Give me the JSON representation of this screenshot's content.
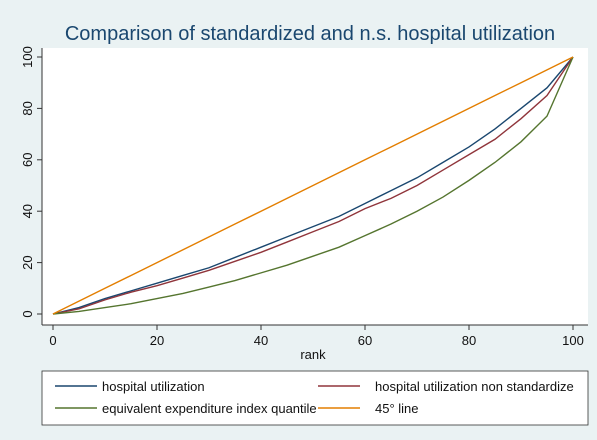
{
  "chart_data": {
    "type": "line",
    "title": "Comparison of standardized and n.s. hospital utilization",
    "x_label": "rank",
    "x": [
      0,
      5,
      10,
      15,
      20,
      25,
      30,
      35,
      40,
      45,
      50,
      55,
      60,
      65,
      70,
      75,
      80,
      85,
      90,
      95,
      100
    ],
    "series": [
      {
        "name": "hospital utilization",
        "color": "#1a476f",
        "values": [
          0,
          2.5,
          6,
          9,
          12,
          15,
          18,
          22,
          26,
          30,
          34,
          38,
          43,
          48,
          53,
          59,
          65,
          72,
          80,
          88,
          100
        ]
      },
      {
        "name": "hospital utilization non standardize",
        "color": "#90353b",
        "values": [
          0,
          2,
          5.5,
          8.5,
          11,
          14,
          17,
          20.5,
          24,
          28,
          32,
          36,
          41,
          45,
          50,
          56,
          62,
          68,
          76,
          85,
          100
        ]
      },
      {
        "name": "equivalent expenditure index quantile",
        "color": "#55752f",
        "values": [
          0,
          1,
          2.5,
          4,
          6,
          8,
          10.5,
          13,
          16,
          19,
          22.5,
          26,
          30.5,
          35,
          40,
          45.5,
          52,
          59,
          67,
          77,
          100
        ]
      },
      {
        "name": "45° line",
        "color": "#e37e00",
        "values": [
          0,
          5,
          10,
          15,
          20,
          25,
          30,
          35,
          40,
          45,
          50,
          55,
          60,
          65,
          70,
          75,
          80,
          85,
          90,
          95,
          100
        ]
      }
    ],
    "xlim": [
      0,
      100
    ],
    "xticks": [
      0,
      20,
      40,
      60,
      80,
      100
    ],
    "ylim": [
      0,
      100
    ],
    "yticks": [
      0,
      20,
      40,
      60,
      80,
      100
    ],
    "grid": false
  }
}
